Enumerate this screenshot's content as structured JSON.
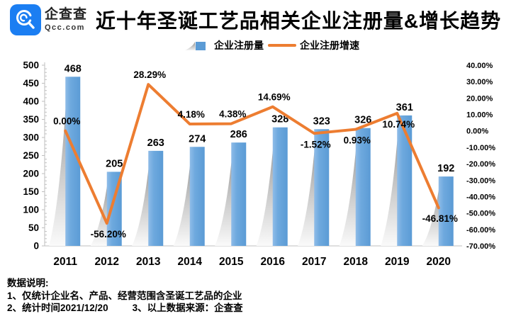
{
  "header": {
    "logo": {
      "brand": "企查查",
      "domain": "Qcc.com",
      "brand_color": "#1B7EF2"
    },
    "title": "近十年圣诞工艺品相关企业注册量&增长趋势"
  },
  "legend": {
    "bar_label": "企业注册量",
    "line_label": "企业注册增速"
  },
  "chart_data": {
    "type": "bar+line combo",
    "title": "近十年圣诞工艺品相关企业注册量&增长趋势",
    "categories": [
      "2011",
      "2012",
      "2013",
      "2014",
      "2015",
      "2016",
      "2017",
      "2018",
      "2019",
      "2020"
    ],
    "series": [
      {
        "name": "企业注册量",
        "type": "bar",
        "axis": "left",
        "values": [
          468,
          205,
          263,
          274,
          286,
          328,
          323,
          326,
          361,
          192
        ],
        "color": "#5B9BD5"
      },
      {
        "name": "企业注册增速",
        "type": "line",
        "axis": "right",
        "unit": "%",
        "values": [
          0.0,
          -56.2,
          28.29,
          4.18,
          4.38,
          14.69,
          -1.52,
          0.93,
          10.74,
          -46.81
        ],
        "labels": [
          "0.00%",
          "-56.20%",
          "28.29%",
          "4.18%",
          "4.38%",
          "14.69%",
          "-1.52%",
          "0.93%",
          "10.74%",
          "-46.81%"
        ],
        "label_positions": [
          "above",
          "below",
          "above",
          "above",
          "above",
          "above",
          "below",
          "below",
          "below",
          "below"
        ],
        "color": "#ED7D31"
      }
    ],
    "left_axis": {
      "min": 0,
      "max": 500,
      "step": 50
    },
    "right_axis": {
      "min": -70,
      "max": 40,
      "step": 10,
      "format": "0.00%"
    },
    "grid": false,
    "legend_position": "top",
    "bar_shadow_color": "#8a8a8a"
  },
  "footnote": {
    "heading": "数据说明:",
    "line1": "1、仅统计企业名、产品、经营范围含圣诞工艺品的企业",
    "line2a": "2、统计时间2021/12/20",
    "line2b": "3、以上数据来源：企查查"
  }
}
